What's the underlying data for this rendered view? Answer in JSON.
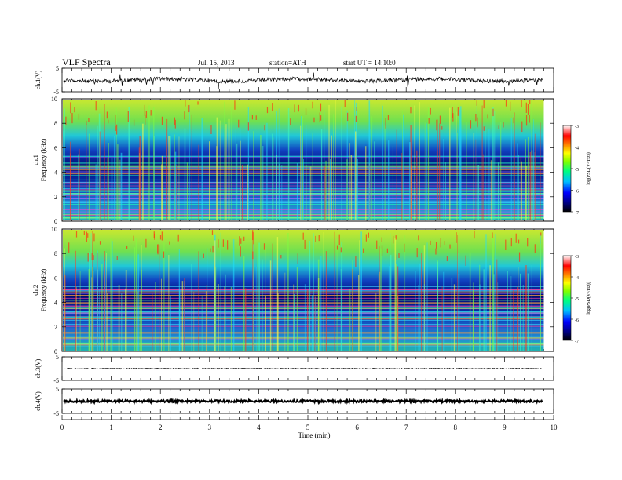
{
  "header": {
    "title": "VLF Spectra",
    "date": "Jul. 15, 2013",
    "station": "station=ATH",
    "start": "start UT = 14:10:0"
  },
  "chart_data": {
    "type": "heatmap",
    "x_axis": {
      "label": "Time (min)",
      "range": [
        0,
        10
      ],
      "ticks": [
        "0",
        "1",
        "2",
        "3",
        "4",
        "5",
        "6",
        "7",
        "8",
        "9",
        "10"
      ],
      "data_extent_min": 9.8
    },
    "panels": [
      {
        "id": "ch1-wave",
        "type": "line",
        "ylabel": "ch.1(V)",
        "yticks": [
          "5",
          "-5"
        ],
        "ylim": [
          -5,
          5
        ],
        "trace_level_v": 0.0,
        "trace_color": "#000000"
      },
      {
        "id": "ch1-spec",
        "type": "heatmap",
        "ylabel_line1": "ch.1",
        "ylabel_line2": "Frequency (kHz)",
        "yticks": [
          "0",
          "2",
          "4",
          "6",
          "8",
          "10"
        ],
        "ylim": [
          0,
          10
        ]
      },
      {
        "id": "ch2-spec",
        "type": "heatmap",
        "ylabel_line1": "ch.2",
        "ylabel_line2": "Frequency (kHz)",
        "yticks": [
          "0",
          "2",
          "4",
          "6",
          "8",
          "10"
        ],
        "ylim": [
          0,
          10
        ]
      },
      {
        "id": "ch3-wave",
        "type": "line",
        "ylabel": "ch.3(V)",
        "yticks": [
          "5",
          "-5"
        ],
        "ylim": [
          -5,
          5
        ],
        "trace_level_v": 0.0,
        "trace_color": "#000000"
      },
      {
        "id": "ch4-wave",
        "type": "line",
        "ylabel": "ch.4(V)",
        "yticks": [
          "5",
          "-5"
        ],
        "ylim": [
          -5,
          5
        ],
        "trace_level_v": 0.0,
        "trace_color": "#000000"
      }
    ],
    "colorbar": {
      "label": "log(PSD(V²/Hz))",
      "ticks": [
        "-3",
        "-4",
        "-5",
        "-6",
        "-7"
      ],
      "range": [
        -7,
        -3
      ],
      "colors": [
        "#000000",
        "#000080",
        "#0000ff",
        "#00bfff",
        "#00ff80",
        "#80ff00",
        "#ffff00",
        "#ff8000",
        "#ff0000",
        "#ffffff"
      ]
    }
  }
}
